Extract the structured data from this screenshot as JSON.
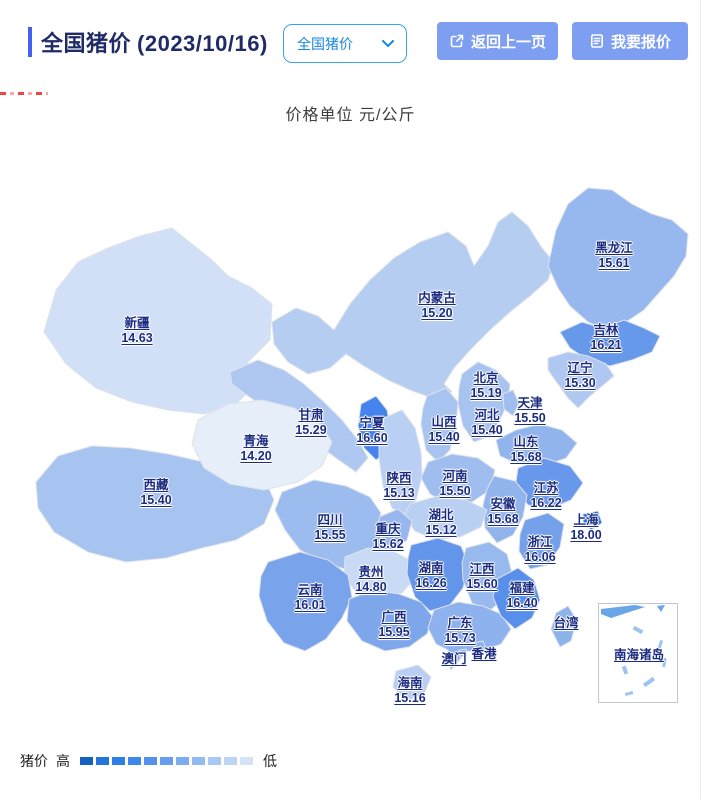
{
  "header": {
    "title": "全国猪价",
    "date": "(2023/10/16)",
    "selector_value": "全国猪价",
    "back_label": "返回上一页",
    "quote_label": "我要报价"
  },
  "subtitle": "价格单位 元/公斤",
  "provinces": [
    {
      "id": "xinjiang",
      "name": "新疆",
      "price": "14.63"
    },
    {
      "id": "xizang",
      "name": "西藏",
      "price": "15.40"
    },
    {
      "id": "neimenggu",
      "name": "内蒙古",
      "price": "15.20"
    },
    {
      "id": "gansu",
      "name": "甘肃",
      "price": "15.29"
    },
    {
      "id": "qinghai",
      "name": "青海",
      "price": "14.20"
    },
    {
      "id": "ningxia",
      "name": "宁夏",
      "price": "16.60"
    },
    {
      "id": "heilongjiang",
      "name": "黑龙江",
      "price": "15.61"
    },
    {
      "id": "jilin",
      "name": "吉林",
      "price": "16.21"
    },
    {
      "id": "liaoning",
      "name": "辽宁",
      "price": "15.30"
    },
    {
      "id": "hebei",
      "name": "河北",
      "price": "15.40"
    },
    {
      "id": "beijing",
      "name": "北京",
      "price": "15.19"
    },
    {
      "id": "tianjin",
      "name": "天津",
      "price": "15.50"
    },
    {
      "id": "shanxi",
      "name": "山西",
      "price": "15.40"
    },
    {
      "id": "shandong",
      "name": "山东",
      "price": "15.68"
    },
    {
      "id": "henan",
      "name": "河南",
      "price": "15.50"
    },
    {
      "id": "shaanxi",
      "name": "陕西",
      "price": "15.13"
    },
    {
      "id": "jiangsu",
      "name": "江苏",
      "price": "16.22"
    },
    {
      "id": "anhui",
      "name": "安徽",
      "price": "15.68"
    },
    {
      "id": "shanghai",
      "name": "上海",
      "price": "18.00"
    },
    {
      "id": "zhejiang",
      "name": "浙江",
      "price": "16.06"
    },
    {
      "id": "hubei",
      "name": "湖北",
      "price": "15.12"
    },
    {
      "id": "chongqing",
      "name": "重庆",
      "price": "15.62"
    },
    {
      "id": "sichuan",
      "name": "四川",
      "price": "15.55"
    },
    {
      "id": "guizhou",
      "name": "贵州",
      "price": "14.80"
    },
    {
      "id": "hunan",
      "name": "湖南",
      "price": "16.26"
    },
    {
      "id": "jiangxi",
      "name": "江西",
      "price": "15.60"
    },
    {
      "id": "yunnan",
      "name": "云南",
      "price": "16.01"
    },
    {
      "id": "guangxi",
      "name": "广西",
      "price": "15.95"
    },
    {
      "id": "guangdong",
      "name": "广东",
      "price": "15.73"
    },
    {
      "id": "fujian",
      "name": "福建",
      "price": "16.40"
    },
    {
      "id": "taiwan",
      "name": "台湾",
      "price": ""
    },
    {
      "id": "xianggang",
      "name": "香港",
      "price": ""
    },
    {
      "id": "aomen",
      "name": "澳门",
      "price": ""
    },
    {
      "id": "hainan",
      "name": "海南",
      "price": "15.16"
    }
  ],
  "inset": {
    "label": "南海诸岛"
  },
  "legend": {
    "title": "猪价",
    "high": "高",
    "low": "低",
    "colors": [
      "#1660c2",
      "#2574dc",
      "#2e7ee8",
      "#3f87ea",
      "#5391ec",
      "#669dee",
      "#7cabf0",
      "#92baf2",
      "#a9c8f3",
      "#bfd5f5",
      "#d5e3f7"
    ]
  },
  "colors": {
    "accent_blue": "#4560ee",
    "button_bg": "#7e9ef1",
    "selector_border": "#3aa2f3",
    "label_navy": "#1b2b80",
    "price_scale_min": "#e6eefa",
    "price_scale_max": "#1f6fe0"
  }
}
